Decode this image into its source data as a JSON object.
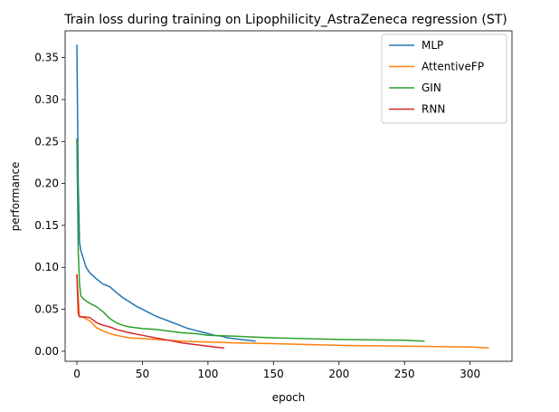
{
  "chart_data": {
    "type": "line",
    "title": "Train loss during training on Lipophilicity_AstraZeneca regression (ST)",
    "xlabel": "epoch",
    "ylabel": "performance",
    "xlim": [
      -9,
      332
    ],
    "ylim": [
      -0.012,
      0.382
    ],
    "xticks": [
      0,
      50,
      100,
      150,
      200,
      250,
      300
    ],
    "yticks": [
      0.0,
      0.05,
      0.1,
      0.15,
      0.2,
      0.25,
      0.3,
      0.35
    ],
    "ytick_labels": [
      "0.00",
      "0.05",
      "0.10",
      "0.15",
      "0.20",
      "0.25",
      "0.30",
      "0.35"
    ],
    "grid": false,
    "legend_position": "top-right",
    "series": [
      {
        "name": "MLP",
        "color": "#1f77b4",
        "x": [
          0,
          1,
          2,
          3,
          5,
          7,
          10,
          13,
          15,
          20,
          25,
          30,
          35,
          40,
          45,
          50,
          55,
          60,
          65,
          70,
          75,
          80,
          85,
          90,
          95,
          100,
          105,
          110,
          115,
          120,
          125,
          130,
          136
        ],
        "y": [
          0.365,
          0.2,
          0.13,
          0.12,
          0.11,
          0.1,
          0.093,
          0.089,
          0.086,
          0.08,
          0.077,
          0.07,
          0.064,
          0.059,
          0.054,
          0.05,
          0.046,
          0.042,
          0.039,
          0.036,
          0.033,
          0.03,
          0.027,
          0.025,
          0.023,
          0.021,
          0.019,
          0.018,
          0.016,
          0.015,
          0.014,
          0.013,
          0.012
        ]
      },
      {
        "name": "AttentiveFP",
        "color": "#ff7f0e",
        "x": [
          0,
          2,
          5,
          10,
          15,
          20,
          25,
          30,
          40,
          50,
          60,
          80,
          100,
          120,
          150,
          200,
          250,
          300,
          314
        ],
        "y": [
          0.091,
          0.042,
          0.04,
          0.036,
          0.028,
          0.024,
          0.021,
          0.019,
          0.016,
          0.015,
          0.014,
          0.012,
          0.011,
          0.01,
          0.009,
          0.007,
          0.006,
          0.005,
          0.004
        ]
      },
      {
        "name": "GIN",
        "color": "#2ca02c",
        "x": [
          0,
          1,
          2,
          3,
          5,
          7,
          10,
          15,
          20,
          25,
          30,
          35,
          40,
          50,
          60,
          70,
          80,
          90,
          100,
          120,
          150,
          200,
          250,
          265
        ],
        "y": [
          0.253,
          0.12,
          0.08,
          0.066,
          0.062,
          0.06,
          0.057,
          0.053,
          0.047,
          0.039,
          0.034,
          0.031,
          0.029,
          0.027,
          0.026,
          0.024,
          0.022,
          0.021,
          0.019,
          0.018,
          0.016,
          0.014,
          0.013,
          0.012
        ]
      },
      {
        "name": "RNN",
        "color": "#d62728",
        "x": [
          0,
          1,
          2,
          5,
          10,
          15,
          20,
          25,
          30,
          40,
          50,
          60,
          70,
          80,
          90,
          100,
          105,
          112
        ],
        "y": [
          0.091,
          0.045,
          0.041,
          0.041,
          0.04,
          0.034,
          0.031,
          0.029,
          0.026,
          0.022,
          0.019,
          0.016,
          0.013,
          0.01,
          0.008,
          0.006,
          0.005,
          0.004
        ]
      }
    ]
  }
}
